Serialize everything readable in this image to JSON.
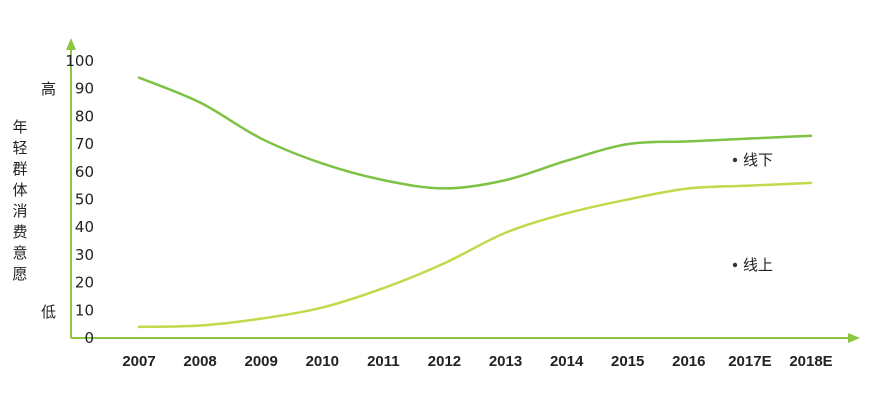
{
  "chart_data": {
    "type": "line",
    "ylabel": "年轻群体消费意愿",
    "annotations": {
      "high": "高",
      "low": "低"
    },
    "categories": [
      "2007",
      "2008",
      "2009",
      "2010",
      "2011",
      "2012",
      "2013",
      "2014",
      "2015",
      "2016",
      "2017E",
      "2018E"
    ],
    "ylim": [
      0,
      100
    ],
    "yticks": [
      0,
      10,
      20,
      30,
      40,
      50,
      60,
      70,
      80,
      90,
      100
    ],
    "grid": false,
    "legend": "inline",
    "series": [
      {
        "name": "线下",
        "color": "#7dc242",
        "values": [
          94,
          85,
          72,
          63,
          57,
          54,
          57,
          64,
          70,
          71,
          72,
          73
        ]
      },
      {
        "name": "线上",
        "color": "#c1d94a",
        "values": [
          4,
          4.5,
          7,
          11,
          18,
          27,
          38,
          45,
          50,
          54,
          55,
          56
        ]
      }
    ],
    "axis_color": "#8cc63f"
  }
}
